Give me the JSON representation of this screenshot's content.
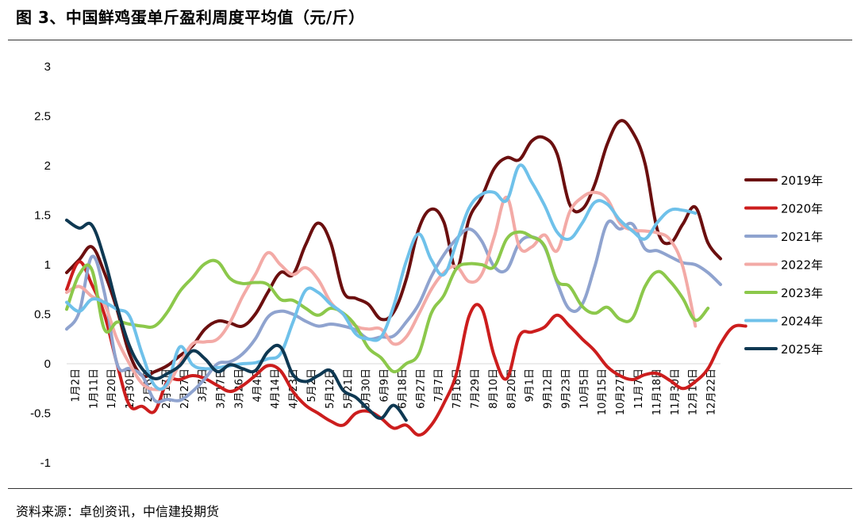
{
  "header": {
    "title": "图 3、中国鲜鸡蛋单斤盈利周度平均值（元/斤）"
  },
  "footer": {
    "source": "资料来源：卓创资讯，中信建投期货"
  },
  "colors": {
    "2019年": "#6b0f0f",
    "2020年": "#cc1d1d",
    "2021年": "#8fa3cf",
    "2022年": "#f3aaa6",
    "2023年": "#8cc84b",
    "2024年": "#6fc1ea",
    "2025年": "#0e3852"
  },
  "chart_data": {
    "type": "line",
    "title": "",
    "xlabel": "",
    "ylabel": "",
    "ylim": [
      -1,
      3
    ],
    "yticks": [
      -1,
      -0.5,
      0,
      0.5,
      1,
      1.5,
      2,
      2.5,
      3
    ],
    "ytick_labels": [
      "-1",
      "-0.5",
      "0",
      "0.5",
      "1",
      "1.5",
      "2",
      "2.5",
      "3"
    ],
    "x_tick_labels": [
      "1月2日",
      "1月11日",
      "1月20日",
      "1月30日",
      "2月8日",
      "2月17日",
      "2月27日",
      "3月7日",
      "3月17日",
      "3月26日",
      "4月4日",
      "4月14日",
      "4月23日",
      "5月2日",
      "5月12日",
      "5月21日",
      "5月30日",
      "6月9日",
      "6月18日",
      "6月27日",
      "7月7日",
      "7月18日",
      "7月29日",
      "8月10日",
      "8月20日",
      "9月1日",
      "9月12日",
      "9月23日",
      "10月5日",
      "10月15日",
      "10月27日",
      "11月7日",
      "11月18日",
      "11月30日",
      "12月10日",
      "12月22日"
    ],
    "legend_position": "right",
    "grid": false,
    "series": [
      {
        "name": "2019年",
        "values": [
          0.92,
          1.05,
          1.18,
          0.92,
          0.55,
          0.1,
          -0.12,
          -0.08,
          -0.02,
          0.08,
          0.18,
          0.35,
          0.43,
          0.41,
          0.38,
          0.5,
          0.72,
          0.92,
          0.9,
          1.2,
          1.42,
          1.22,
          0.73,
          0.66,
          0.6,
          0.45,
          0.52,
          0.85,
          1.36,
          1.56,
          1.43,
          0.96,
          1.46,
          1.68,
          1.97,
          2.08,
          2.06,
          2.25,
          2.28,
          2.12,
          1.61,
          1.56,
          1.81,
          2.22,
          2.45,
          2.34,
          2.02,
          1.34,
          1.22,
          1.41,
          1.58,
          1.22,
          1.06
        ]
      },
      {
        "name": "2020年",
        "values": [
          0.75,
          1.03,
          0.8,
          0.5,
          0.0,
          -0.42,
          -0.43,
          -0.48,
          -0.18,
          -0.16,
          -0.12,
          -0.15,
          -0.22,
          -0.28,
          -0.22,
          -0.12,
          -0.02,
          -0.07,
          -0.28,
          -0.42,
          -0.5,
          -0.58,
          -0.62,
          -0.5,
          -0.48,
          -0.55,
          -0.65,
          -0.62,
          -0.72,
          -0.62,
          -0.4,
          -0.1,
          0.48,
          0.56,
          0.08,
          -0.15,
          0.28,
          0.32,
          0.37,
          0.49,
          0.38,
          0.25,
          0.13,
          -0.03,
          -0.12,
          -0.16,
          -0.11,
          -0.1,
          -0.17,
          -0.25,
          -0.18,
          -0.05,
          0.2,
          0.37,
          0.38
        ]
      },
      {
        "name": "2021年",
        "values": [
          0.35,
          0.52,
          1.08,
          0.72,
          0.0,
          -0.05,
          -0.12,
          -0.37,
          -0.36,
          -0.37,
          -0.28,
          -0.15,
          0.0,
          0.02,
          0.1,
          0.25,
          0.47,
          0.53,
          0.5,
          0.43,
          0.38,
          0.4,
          0.38,
          0.34,
          0.25,
          0.27,
          0.28,
          0.42,
          0.6,
          0.88,
          1.1,
          1.26,
          1.36,
          1.24,
          0.98,
          0.95,
          1.22,
          1.28,
          1.18,
          0.82,
          0.55,
          0.6,
          0.98,
          1.42,
          1.36,
          1.41,
          1.16,
          1.14,
          1.08,
          1.02,
          1.0,
          0.92,
          0.8
        ]
      },
      {
        "name": "2022年",
        "values": [
          0.72,
          0.78,
          0.68,
          0.6,
          0.25,
          0.0,
          -0.2,
          -0.26,
          -0.22,
          0.0,
          0.2,
          0.22,
          0.25,
          0.42,
          0.68,
          0.9,
          1.12,
          1.0,
          0.9,
          0.97,
          0.85,
          0.62,
          0.5,
          0.38,
          0.35,
          0.35,
          0.2,
          0.27,
          0.5,
          0.75,
          0.92,
          0.98,
          0.83,
          0.9,
          1.28,
          1.68,
          1.18,
          1.18,
          1.3,
          1.14,
          1.53,
          1.68,
          1.73,
          1.66,
          1.42,
          1.35,
          1.34,
          1.32,
          1.25,
          0.98,
          0.38
        ]
      },
      {
        "name": "2023年",
        "values": [
          0.55,
          0.9,
          0.95,
          0.35,
          0.42,
          0.4,
          0.38,
          0.38,
          0.52,
          0.73,
          0.87,
          1.01,
          1.03,
          0.86,
          0.81,
          0.82,
          0.8,
          0.65,
          0.64,
          0.56,
          0.49,
          0.56,
          0.51,
          0.38,
          0.16,
          0.06,
          -0.08,
          0.0,
          0.1,
          0.51,
          0.69,
          0.96,
          1.01,
          1.0,
          0.98,
          1.26,
          1.33,
          1.28,
          1.19,
          0.84,
          0.78,
          0.58,
          0.51,
          0.57,
          0.45,
          0.46,
          0.78,
          0.93,
          0.83,
          0.66,
          0.44,
          0.56
        ]
      },
      {
        "name": "2024年",
        "values": [
          0.62,
          0.53,
          0.65,
          0.62,
          0.55,
          0.48,
          0.1,
          -0.22,
          -0.2,
          0.17,
          -0.01,
          -0.05,
          -0.04,
          -0.02,
          0.0,
          0.01,
          0.05,
          0.1,
          0.42,
          0.74,
          0.72,
          0.6,
          0.5,
          0.3,
          0.25,
          0.27,
          0.58,
          1.03,
          1.31,
          1.05,
          0.9,
          1.22,
          1.57,
          1.71,
          1.73,
          1.65,
          2.0,
          1.83,
          1.6,
          1.33,
          1.26,
          1.42,
          1.63,
          1.61,
          1.45,
          1.34,
          1.26,
          1.43,
          1.55,
          1.55,
          1.52
        ]
      },
      {
        "name": "2025年",
        "values": [
          1.45,
          1.37,
          1.4,
          1.06,
          0.58,
          0.18,
          -0.05,
          -0.15,
          -0.1,
          -0.02,
          0.13,
          0.05,
          -0.08,
          -0.01,
          -0.05,
          -0.07,
          0.12,
          0.17,
          -0.11,
          -0.18,
          -0.12,
          -0.07,
          -0.27,
          -0.34,
          -0.46,
          -0.55,
          -0.42,
          -0.57
        ]
      }
    ]
  }
}
